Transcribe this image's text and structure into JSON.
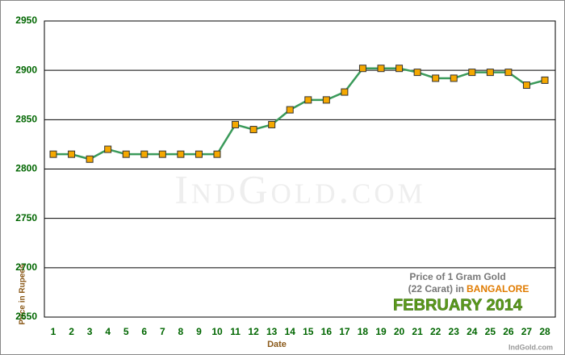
{
  "chart_data": {
    "type": "line",
    "categories": [
      "1",
      "2",
      "3",
      "4",
      "5",
      "6",
      "7",
      "8",
      "9",
      "10",
      "11",
      "12",
      "13",
      "14",
      "15",
      "16",
      "17",
      "18",
      "19",
      "20",
      "21",
      "22",
      "23",
      "24",
      "25",
      "26",
      "27",
      "28"
    ],
    "values": [
      2815,
      2815,
      2810,
      2820,
      2815,
      2815,
      2815,
      2815,
      2815,
      2815,
      2845,
      2840,
      2845,
      2860,
      2870,
      2870,
      2878,
      2902,
      2902,
      2902,
      2898,
      2892,
      2892,
      2898,
      2898,
      2898,
      2885,
      2890
    ],
    "color": "#3a9a5a",
    "marker_color": "#f5a800",
    "ylim": [
      2650,
      2950
    ],
    "yticks": [
      2650,
      2700,
      2750,
      2800,
      2850,
      2900,
      2950
    ],
    "grid": true,
    "x_label": "Date",
    "y_label": "Price in Rupees",
    "annotation": {
      "line1": "Price of 1 Gram Gold",
      "line2": "(22 Carat) in",
      "city": "BANGALORE",
      "month": "FEBRUARY 2014"
    },
    "watermark": "IndGold.com",
    "credit": "IndGold.com"
  }
}
